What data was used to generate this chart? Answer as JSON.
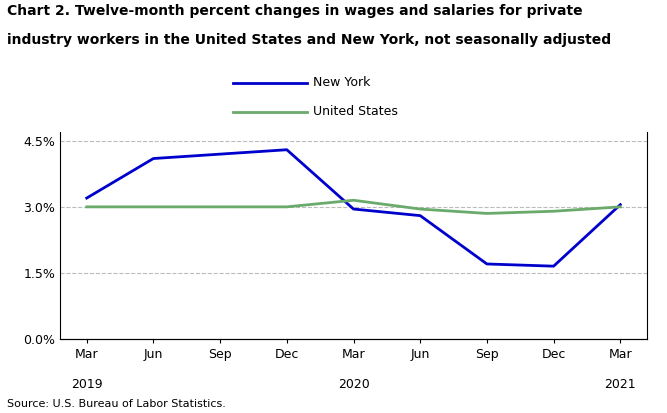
{
  "title_line1": "Chart 2. Twelve-month percent changes in wages and salaries for private",
  "title_line2": "industry workers in the United States and New York, not seasonally adjusted",
  "source": "Source: U.S. Bureau of Labor Statistics.",
  "x_labels_top": [
    "Mar",
    "Jun",
    "Sep",
    "Dec",
    "Mar",
    "Jun",
    "Sep",
    "Dec",
    "Mar"
  ],
  "x_labels_bottom": [
    "2019",
    "",
    "",
    "",
    "2020",
    "",
    "",
    "",
    "2021"
  ],
  "new_york": [
    3.2,
    4.1,
    4.2,
    4.3,
    2.95,
    2.8,
    1.7,
    1.65,
    3.05
  ],
  "united_states": [
    3.0,
    3.0,
    3.0,
    3.0,
    3.15,
    2.95,
    2.85,
    2.9,
    3.0
  ],
  "ny_color": "#0000cc",
  "us_color": "#6aaa6a",
  "ny_label": "New York",
  "us_label": "United States",
  "ylim": [
    0.0,
    4.7
  ],
  "yticks": [
    0.0,
    1.5,
    3.0,
    4.5
  ],
  "grid_color": "#bbbbbb",
  "background_color": "#ffffff",
  "line_width": 2.0
}
